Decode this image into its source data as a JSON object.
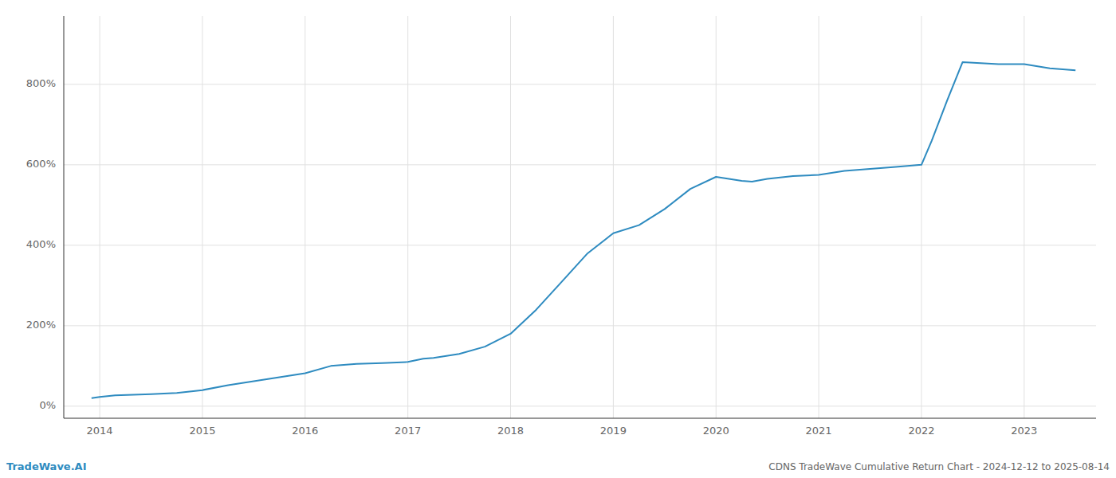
{
  "chart_data": {
    "type": "line",
    "title": "CDNS TradeWave Cumulative Return Chart - 2024-12-12 to 2025-08-14",
    "annotations": [
      "TradeWave.AI"
    ],
    "color": "#2e8bc0",
    "grid": true,
    "x": [
      2013.92,
      2014.0,
      2014.15,
      2014.5,
      2014.75,
      2015.0,
      2015.25,
      2015.5,
      2015.75,
      2016.0,
      2016.25,
      2016.5,
      2016.75,
      2017.0,
      2017.15,
      2017.25,
      2017.5,
      2017.75,
      2018.0,
      2018.25,
      2018.5,
      2018.75,
      2019.0,
      2019.25,
      2019.5,
      2019.75,
      2020.0,
      2020.25,
      2020.35,
      2020.5,
      2020.75,
      2021.0,
      2021.25,
      2021.5,
      2021.75,
      2022.0,
      2022.1,
      2022.25,
      2022.4,
      2022.75,
      2023.0,
      2023.25,
      2023.5
    ],
    "values": [
      20,
      23,
      27,
      30,
      33,
      40,
      52,
      62,
      72,
      82,
      100,
      105,
      107,
      110,
      118,
      120,
      130,
      148,
      180,
      240,
      310,
      380,
      430,
      450,
      490,
      540,
      570,
      560,
      558,
      565,
      572,
      575,
      585,
      590,
      595,
      600,
      660,
      760,
      855,
      850,
      850,
      840,
      835
    ],
    "xlim": [
      2013.65,
      2023.7
    ],
    "ylim": [
      -30,
      970
    ],
    "xticks": [
      2014,
      2015,
      2016,
      2017,
      2018,
      2019,
      2020,
      2021,
      2022,
      2023
    ],
    "yticks": [
      {
        "value": 0,
        "label": "0%"
      },
      {
        "value": 200,
        "label": "200%"
      },
      {
        "value": 400,
        "label": "400%"
      },
      {
        "value": 600,
        "label": "600%"
      },
      {
        "value": 800,
        "label": "800%"
      }
    ]
  }
}
